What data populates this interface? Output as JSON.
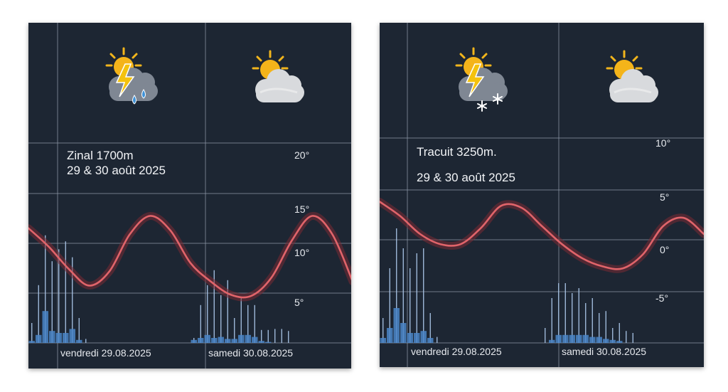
{
  "colors": {
    "background": "#1d2633",
    "grid": "#8d98a8",
    "temperature_line": "#e0646a",
    "temperature_halo": "#7a2a33",
    "precip_bar": "#4a86c8",
    "precip_stem": "#a9c4e6",
    "text": "#e6e9ee"
  },
  "icons": [
    "thunderstorm-rain-icon",
    "partly-cloudy-icon",
    "thunderstorm-snow-icon",
    "partly-cloudy-icon"
  ],
  "chart_data": [
    {
      "type": "line",
      "title": "Zinal 1700m",
      "subtitle": "29 & 30 août 2025",
      "x_labels": [
        "vendredi 29.08.2025",
        "samedi 30.08.2025"
      ],
      "y_ticks": [
        "20°",
        "15°",
        "10°",
        "5°"
      ],
      "y_tick_values": [
        20,
        15,
        10,
        5
      ],
      "ylim": [
        0,
        25
      ],
      "grid": true,
      "series": [
        {
          "type": "line",
          "x_hours": [
            0,
            3,
            6,
            9,
            12,
            15,
            18,
            21,
            24,
            27,
            30,
            33,
            36,
            39,
            42,
            45,
            48
          ],
          "values": [
            13,
            11.2,
            9,
            7.4,
            8.8,
            12.4,
            14.2,
            12.8,
            9.6,
            7.8,
            6.5,
            6.4,
            8.2,
            11.8,
            14.2,
            12.4,
            7.8
          ]
        },
        {
          "type": "bar",
          "x_hours": [
            0,
            1,
            2,
            3,
            4,
            5,
            6,
            7,
            8,
            9,
            10,
            11,
            12,
            13,
            14,
            15,
            16,
            17,
            18,
            19,
            20,
            21,
            22,
            23,
            24,
            25,
            26,
            27,
            28,
            29,
            30,
            31,
            32,
            33,
            34,
            35,
            36,
            37,
            38,
            39,
            40,
            41,
            42,
            43,
            44,
            45,
            46,
            47
          ],
          "values": [
            0.2,
            0.8,
            3.2,
            1.2,
            1,
            1,
            1.4,
            0.3,
            0,
            0,
            0,
            0,
            0,
            0,
            0,
            0,
            0,
            0,
            0,
            0,
            0,
            0,
            0,
            0,
            0.3,
            0.5,
            0.8,
            0.5,
            0.6,
            0.4,
            0.4,
            0.8,
            0.8,
            0.6,
            0.2,
            0.1,
            0,
            0,
            0,
            0,
            0,
            0,
            0,
            0,
            0,
            0,
            0,
            0
          ],
          "max_values": [
            2,
            5.8,
            10.8,
            8.2,
            9.4,
            10.2,
            8.6,
            2.5,
            0.4,
            0,
            0,
            0,
            0,
            0,
            0,
            0,
            0,
            0,
            0,
            0,
            0,
            0,
            0,
            0,
            0.5,
            3.8,
            5.8,
            7.3,
            4.8,
            6.3,
            2.5,
            4.5,
            3.8,
            3.8,
            1.3,
            1.3,
            1.4,
            1.4,
            1.2,
            0,
            0,
            0,
            0,
            0,
            0,
            0,
            0,
            0
          ]
        }
      ]
    },
    {
      "type": "line",
      "title": "Tracuit 3250m.",
      "subtitle": "29 & 30 août 2025",
      "x_labels": [
        "vendredi 29.08.2025",
        "samedi 30.08.2025"
      ],
      "y_ticks": [
        "10°",
        "5°",
        "0°",
        "-5°"
      ],
      "y_tick_values": [
        10,
        5,
        0,
        -5
      ],
      "ylim": [
        -10,
        15
      ],
      "grid": true,
      "series": [
        {
          "type": "line",
          "x_hours": [
            0,
            3,
            6,
            9,
            12,
            15,
            18,
            21,
            24,
            27,
            30,
            33,
            36,
            39,
            42,
            45,
            48
          ],
          "values": [
            4.4,
            3,
            1.2,
            0.2,
            0.2,
            1.8,
            4,
            3.8,
            2,
            0.2,
            -1.2,
            -2,
            -2.2,
            -0.8,
            2,
            2.8,
            1.2
          ]
        },
        {
          "type": "bar",
          "x_hours": [
            0,
            1,
            2,
            3,
            4,
            5,
            6,
            7,
            8,
            9,
            10,
            11,
            12,
            13,
            14,
            15,
            16,
            17,
            18,
            19,
            20,
            21,
            22,
            23,
            24,
            25,
            26,
            27,
            28,
            29,
            30,
            31,
            32,
            33,
            34,
            35,
            36,
            37,
            38,
            39,
            40,
            41,
            42,
            43,
            44,
            45,
            46,
            47
          ],
          "values": [
            0.5,
            1.5,
            3.5,
            2,
            1,
            1,
            1.2,
            0.5,
            0,
            0,
            0,
            0,
            0,
            0,
            0,
            0,
            0,
            0,
            0,
            0,
            0,
            0,
            0,
            0,
            0,
            0.3,
            0.8,
            0.8,
            0.8,
            0.8,
            0.8,
            0.6,
            0.6,
            0.4,
            0.3,
            0.2,
            0,
            0,
            0,
            0,
            0,
            0,
            0,
            0,
            0,
            0,
            0,
            0
          ],
          "max_values": [
            2.5,
            7.5,
            11.5,
            9.5,
            7.5,
            9,
            9.5,
            3,
            0.6,
            0,
            0,
            0,
            0,
            0,
            0,
            0,
            0,
            0,
            0,
            0,
            0,
            0,
            0,
            0,
            1.5,
            4.5,
            6,
            6,
            5,
            5.5,
            4,
            4.5,
            3,
            3.2,
            1.5,
            2,
            1.2,
            1,
            0,
            0,
            0,
            0,
            0,
            0,
            0,
            0,
            0
          ]
        }
      ]
    }
  ]
}
